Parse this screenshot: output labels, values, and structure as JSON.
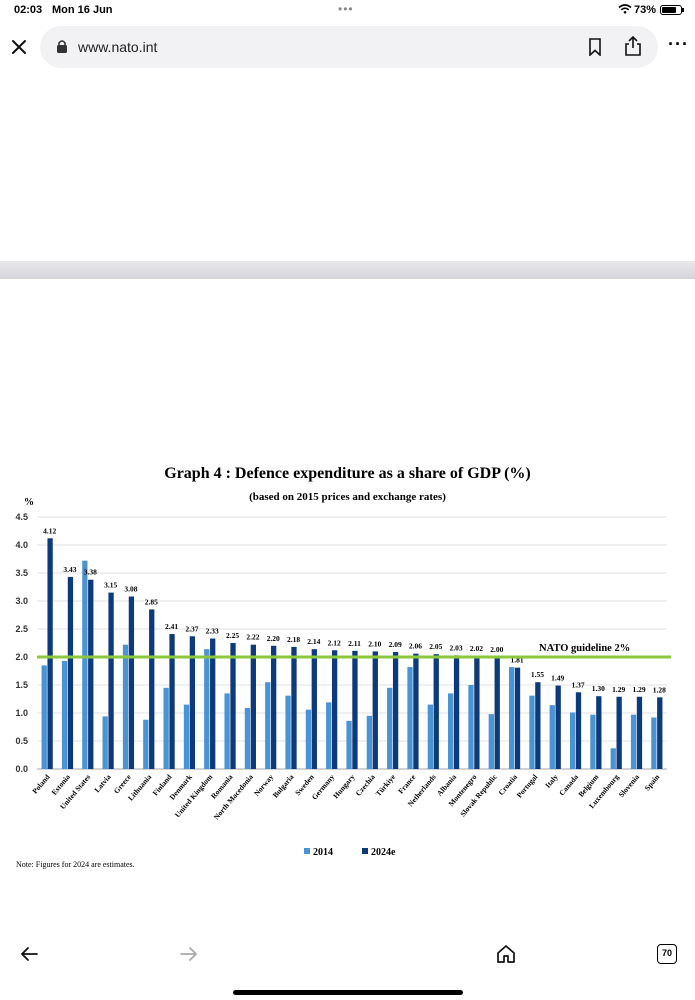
{
  "status": {
    "time": "02:03",
    "date": "Mon 16 Jun",
    "battery": "73%"
  },
  "browser": {
    "url": "www.nato.int",
    "tab_count": "70"
  },
  "chart": {
    "title": "Graph 4 : Defence expenditure as a share of GDP (%)",
    "subtitle": "(based on 2015 prices and exchange rates)",
    "y_unit": "%",
    "guideline_label": "NATO guideline 2%",
    "note": "Note: Figures for 2024 are estimates.",
    "colors": {
      "series_2014": "#4a94d4",
      "series_2024": "#0d3a7a",
      "guideline": "#8dc63f"
    }
  },
  "chart_data": {
    "type": "bar",
    "title": "Graph 4 : Defence expenditure as a share of GDP (%)",
    "ylabel": "%",
    "ylim": [
      0,
      4.5
    ],
    "yticks": [
      "0.0",
      "0.5",
      "1.0",
      "1.5",
      "2.0",
      "2.5",
      "3.0",
      "3.5",
      "4.0",
      "4.5"
    ],
    "guideline": 2.0,
    "categories": [
      "Poland",
      "Estonia",
      "United States",
      "Latvia",
      "Greece",
      "Lithuania",
      "Finland",
      "Denmark",
      "United Kingdom",
      "Romania",
      "North Macedonia",
      "Norway",
      "Bulgaria",
      "Sweden",
      "Germany",
      "Hungary",
      "Czechia",
      "Türkiye",
      "France",
      "Netherlands",
      "Albania",
      "Montenegro",
      "Slovak Republic",
      "Croatia",
      "Portugal",
      "Italy",
      "Canada",
      "Belgium",
      "Luxembourg",
      "Slovenia",
      "Spain"
    ],
    "series": [
      {
        "name": "2014",
        "values": [
          1.85,
          1.93,
          3.72,
          0.94,
          2.22,
          0.88,
          1.45,
          1.15,
          2.14,
          1.35,
          1.09,
          1.55,
          1.31,
          1.06,
          1.19,
          0.86,
          0.95,
          1.45,
          1.82,
          1.15,
          1.35,
          1.5,
          0.98,
          1.82,
          1.31,
          1.14,
          1.01,
          0.97,
          0.37,
          0.97,
          0.92
        ]
      },
      {
        "name": "2024e",
        "values": [
          4.12,
          3.43,
          3.38,
          3.15,
          3.08,
          2.85,
          2.41,
          2.37,
          2.33,
          2.25,
          2.22,
          2.2,
          2.18,
          2.14,
          2.12,
          2.11,
          2.1,
          2.09,
          2.06,
          2.05,
          2.03,
          2.02,
          2.0,
          1.81,
          1.55,
          1.49,
          1.37,
          1.3,
          1.29,
          1.29,
          1.28
        ]
      }
    ],
    "data_labels": [
      "4.12",
      "3.43",
      "3.38",
      "3.15",
      "3.08",
      "2.85",
      "2.41",
      "2.37",
      "2.33",
      "2.25",
      "2.22",
      "2.20",
      "2.18",
      "2.14",
      "2.12",
      "2.11",
      "2.10",
      "2.09",
      "2.06",
      "2.05",
      "2.03",
      "2.02",
      "2.00",
      "1.81",
      "1.55",
      "1.49",
      "1.37",
      "1.30",
      "1.29",
      "1.29",
      "1.28"
    ],
    "legend": [
      "2014",
      "2024e"
    ],
    "legend_position": "bottom-center",
    "grid": true
  }
}
